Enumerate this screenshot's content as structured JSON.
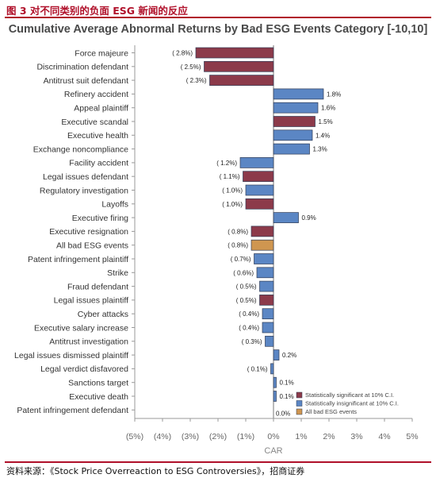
{
  "figure": {
    "title": "图 3 对不同类别的负面 ESG 新闻的反应",
    "source": "资料来源：《Stock Price Overreaction to ESG Controversies》，招商证券"
  },
  "colors": {
    "significant": "#8c3a4a",
    "insignificant": "#5b86c4",
    "all_events": "#cf9650",
    "accent": "#b0102a"
  },
  "chart_data": {
    "type": "bar",
    "orientation": "horizontal",
    "title": "Cumulative Average Abnormal Returns by Bad ESG Events Category [-10,10]",
    "xlabel": "CAR",
    "ylabel": "",
    "xlim": [
      -5,
      5
    ],
    "x_ticks": [
      -5,
      -4,
      -3,
      -2,
      -1,
      0,
      1,
      2,
      3,
      4,
      5
    ],
    "x_tick_labels": [
      "(5%)",
      "(4%)",
      "(3%)",
      "(2%)",
      "(1%)",
      "0%",
      "1%",
      "2%",
      "3%",
      "4%",
      "5%"
    ],
    "unit": "%",
    "legend_position": "bottom-right",
    "legend": [
      {
        "key": "significant",
        "label": "Statistically significant at 10% C.I."
      },
      {
        "key": "insignificant",
        "label": "Statistically insignificant at 10% C.I."
      },
      {
        "key": "all_events",
        "label": "All bad ESG events"
      }
    ],
    "categories": [
      "Force majeure",
      "Discrimination defendant",
      "Antitrust suit defendant",
      "Refinery accident",
      "Appeal plaintiff",
      "Executive scandal",
      "Executive health",
      "Exchange noncompliance",
      "Facility accident",
      "Legal issues defendant",
      "Regulatory investigation",
      "Layoffs",
      "Executive firing",
      "Executive resignation",
      "All bad ESG events",
      "Patent infringement plaintiff",
      "Strike",
      "Fraud defendant",
      "Legal issues plaintiff",
      "Cyber attacks",
      "Executive salary increase",
      "Antitrust investigation",
      "Legal issues dismissed plaintiff",
      "Legal verdict disfavored",
      "Sanctions target",
      "Executive death",
      "Patent infringement defendant"
    ],
    "values": [
      -2.8,
      -2.5,
      -2.3,
      1.8,
      1.6,
      1.5,
      1.4,
      1.3,
      -1.2,
      -1.1,
      -1.0,
      -1.0,
      0.9,
      -0.8,
      -0.8,
      -0.7,
      -0.6,
      -0.5,
      -0.5,
      -0.4,
      -0.4,
      -0.3,
      0.2,
      -0.1,
      0.1,
      0.1,
      0.0
    ],
    "value_labels": [
      "( 2.8%)",
      "( 2.5%)",
      "( 2.3%)",
      "1.8%",
      "1.6%",
      "1.5%",
      "1.4%",
      "1.3%",
      "( 1.2%)",
      "( 1.1%)",
      "( 1.0%)",
      "( 1.0%)",
      "0.9%",
      "( 0.8%)",
      "( 0.8%)",
      "( 0.7%)",
      "( 0.6%)",
      "( 0.5%)",
      "( 0.5%)",
      "( 0.4%)",
      "( 0.4%)",
      "( 0.3%)",
      "0.2%",
      "( 0.1%)",
      "0.1%",
      "0.1%",
      "0.0%"
    ],
    "groups": [
      "significant",
      "significant",
      "significant",
      "insignificant",
      "insignificant",
      "significant",
      "insignificant",
      "insignificant",
      "insignificant",
      "significant",
      "insignificant",
      "significant",
      "insignificant",
      "significant",
      "all_events",
      "insignificant",
      "insignificant",
      "insignificant",
      "significant",
      "insignificant",
      "insignificant",
      "insignificant",
      "insignificant",
      "insignificant",
      "insignificant",
      "insignificant",
      "insignificant"
    ]
  }
}
